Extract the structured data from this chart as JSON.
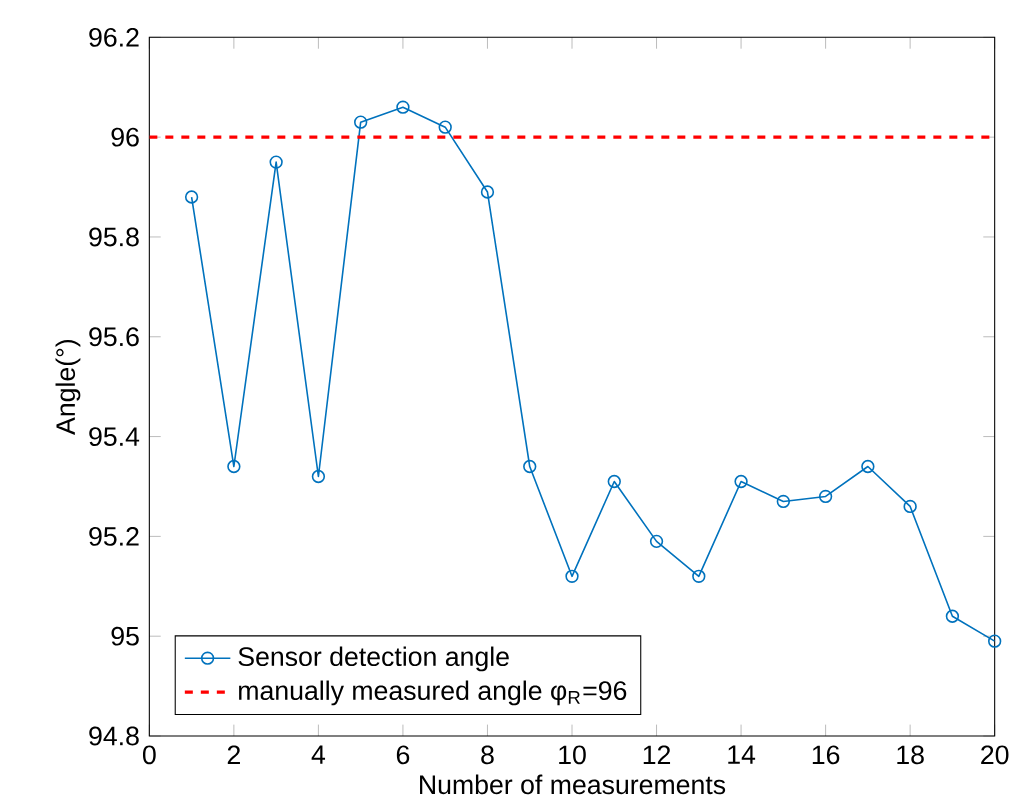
{
  "chart_data": {
    "type": "line",
    "xlabel": "Number of measurements",
    "ylabel": "Angle(°)",
    "x": [
      1,
      2,
      3,
      4,
      5,
      6,
      7,
      8,
      9,
      10,
      11,
      12,
      13,
      14,
      15,
      16,
      17,
      18,
      19,
      20
    ],
    "series": [
      {
        "name": "Sensor detection angle",
        "color": "#0072bd",
        "values": [
          95.88,
          95.34,
          95.95,
          95.32,
          96.03,
          96.06,
          96.02,
          95.89,
          95.34,
          95.12,
          95.31,
          95.19,
          95.12,
          95.31,
          95.27,
          95.28,
          95.34,
          95.26,
          95.04,
          94.99
        ]
      }
    ],
    "ref_lines": [
      {
        "axis": "y",
        "value": 96,
        "label": "manually measured angle φ$_{R}$=96",
        "color": "#ff0000",
        "line_style": "dashed"
      }
    ],
    "xlim": [
      0,
      20
    ],
    "ylim": [
      94.8,
      96.2
    ],
    "xticks": [
      0,
      2,
      4,
      6,
      8,
      10,
      12,
      14,
      16,
      18,
      20
    ],
    "yticks": [
      94.8,
      95,
      95.2,
      95.4,
      95.6,
      95.8,
      96,
      96.2
    ],
    "marker": "circle",
    "line_style": "solid",
    "legend": "bottom left",
    "grid": false
  }
}
